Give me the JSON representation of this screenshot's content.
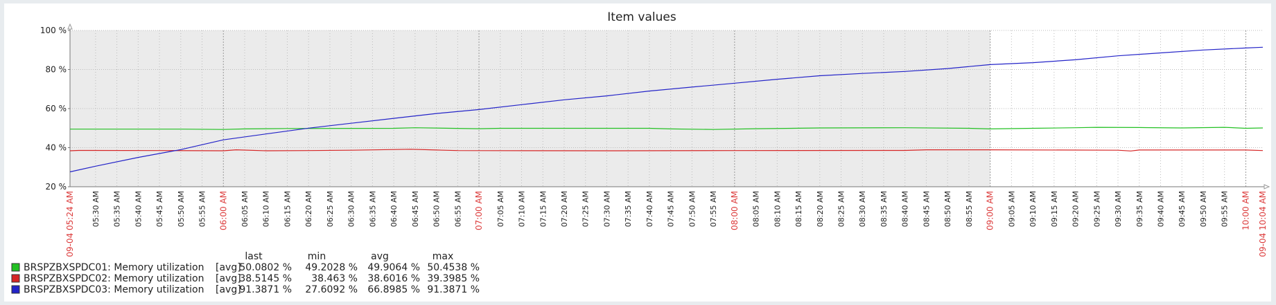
{
  "chart_data": {
    "type": "line",
    "title": "Item values",
    "ylim": [
      20,
      100
    ],
    "y_ticks": [
      "20 %",
      "40 %",
      "60 %",
      "80 %",
      "100 %"
    ],
    "y_tick_values": [
      20,
      40,
      60,
      80,
      100
    ],
    "x_start_label": "09-04 05:24 AM",
    "x_end_label": "09-04 10:04 AM",
    "x_ticks": [
      "05:30 AM",
      "05:35 AM",
      "05:40 AM",
      "05:45 AM",
      "05:50 AM",
      "05:55 AM",
      "06:00 AM",
      "06:05 AM",
      "06:10 AM",
      "06:15 AM",
      "06:20 AM",
      "06:25 AM",
      "06:30 AM",
      "06:35 AM",
      "06:40 AM",
      "06:45 AM",
      "06:50 AM",
      "06:55 AM",
      "07:00 AM",
      "07:05 AM",
      "07:10 AM",
      "07:15 AM",
      "07:20 AM",
      "07:25 AM",
      "07:30 AM",
      "07:35 AM",
      "07:40 AM",
      "07:45 AM",
      "07:50 AM",
      "07:55 AM",
      "08:00 AM",
      "08:05 AM",
      "08:10 AM",
      "08:15 AM",
      "08:20 AM",
      "08:25 AM",
      "08:30 AM",
      "08:35 AM",
      "08:40 AM",
      "08:45 AM",
      "08:50 AM",
      "08:55 AM",
      "09:00 AM",
      "09:05 AM",
      "09:10 AM",
      "09:15 AM",
      "09:20 AM",
      "09:25 AM",
      "09:30 AM",
      "09:35 AM",
      "09:40 AM",
      "09:45 AM",
      "09:50 AM",
      "09:55 AM",
      "10:00 AM"
    ],
    "major_ticks": [
      "06:00 AM",
      "07:00 AM",
      "08:00 AM",
      "09:00 AM",
      "10:00 AM"
    ],
    "shaded_until": "09:00 AM",
    "colors": {
      "grid": "#bbbbbb",
      "shade": "#ebebeb",
      "major_tick_text": "#dc3b3b"
    },
    "series": [
      {
        "name": "BRSPZBXSPDC01: Memory utilization",
        "color": "#22c022",
        "points": [
          [
            "05:24 AM",
            49.5
          ],
          [
            "05:50 AM",
            49.5
          ],
          [
            "06:00 AM",
            49.3
          ],
          [
            "06:05 AM",
            49.6
          ],
          [
            "06:15 AM",
            49.8
          ],
          [
            "06:40 AM",
            49.9
          ],
          [
            "06:45 AM",
            50.2
          ],
          [
            "07:00 AM",
            49.7
          ],
          [
            "07:05 AM",
            49.9
          ],
          [
            "07:40 AM",
            49.9
          ],
          [
            "07:45 AM",
            49.6
          ],
          [
            "07:55 AM",
            49.3
          ],
          [
            "08:05 AM",
            49.7
          ],
          [
            "08:20 AM",
            50.1
          ],
          [
            "08:40 AM",
            50.2
          ],
          [
            "08:55 AM",
            49.9
          ],
          [
            "09:00 AM",
            49.6
          ],
          [
            "09:10 AM",
            49.9
          ],
          [
            "09:20 AM",
            50.2
          ],
          [
            "09:25 AM",
            50.4
          ],
          [
            "09:35 AM",
            50.3
          ],
          [
            "09:45 AM",
            50.1
          ],
          [
            "09:55 AM",
            50.4
          ],
          [
            "10:00 AM",
            49.9
          ],
          [
            "10:04 AM",
            50.08
          ]
        ]
      },
      {
        "name": "BRSPZBXSPDC02: Memory utilization",
        "color": "#d62424",
        "points": [
          [
            "05:24 AM",
            38.4
          ],
          [
            "05:26 AM",
            38.6
          ],
          [
            "05:45 AM",
            38.5
          ],
          [
            "06:00 AM",
            38.4
          ],
          [
            "06:03 AM",
            38.9
          ],
          [
            "06:10 AM",
            38.4
          ],
          [
            "06:20 AM",
            38.5
          ],
          [
            "06:30 AM",
            38.7
          ],
          [
            "06:44 AM",
            39.2
          ],
          [
            "06:50 AM",
            38.8
          ],
          [
            "06:55 AM",
            38.5
          ],
          [
            "07:30 AM",
            38.4
          ],
          [
            "08:00 AM",
            38.5
          ],
          [
            "08:40 AM",
            38.6
          ],
          [
            "08:45 AM",
            38.9
          ],
          [
            "09:00 AM",
            38.9
          ],
          [
            "09:30 AM",
            38.7
          ],
          [
            "09:33 AM",
            38.3
          ],
          [
            "09:35 AM",
            38.8
          ],
          [
            "10:00 AM",
            38.8
          ],
          [
            "10:04 AM",
            38.51
          ]
        ]
      },
      {
        "name": "BRSPZBXSPDC03: Memory utilization",
        "color": "#2323c8",
        "points": [
          [
            "05:24 AM",
            27.6
          ],
          [
            "05:30 AM",
            30.5
          ],
          [
            "05:40 AM",
            35.0
          ],
          [
            "05:50 AM",
            39.0
          ],
          [
            "06:00 AM",
            44.0
          ],
          [
            "06:10 AM",
            47.0
          ],
          [
            "06:20 AM",
            50.0
          ],
          [
            "06:30 AM",
            52.5
          ],
          [
            "06:40 AM",
            55.0
          ],
          [
            "06:50 AM",
            57.5
          ],
          [
            "07:00 AM",
            59.5
          ],
          [
            "07:10 AM",
            62.0
          ],
          [
            "07:20 AM",
            64.5
          ],
          [
            "07:30 AM",
            66.5
          ],
          [
            "07:40 AM",
            69.0
          ],
          [
            "07:50 AM",
            71.0
          ],
          [
            "08:00 AM",
            73.0
          ],
          [
            "08:10 AM",
            75.0
          ],
          [
            "08:20 AM",
            76.8
          ],
          [
            "08:30 AM",
            78.0
          ],
          [
            "08:40 AM",
            79.0
          ],
          [
            "08:50 AM",
            80.5
          ],
          [
            "09:00 AM",
            82.5
          ],
          [
            "09:10 AM",
            83.5
          ],
          [
            "09:20 AM",
            85.0
          ],
          [
            "09:30 AM",
            87.0
          ],
          [
            "09:40 AM",
            88.5
          ],
          [
            "09:50 AM",
            90.0
          ],
          [
            "10:00 AM",
            91.0
          ],
          [
            "10:04 AM",
            91.39
          ]
        ]
      }
    ],
    "legend": {
      "headers": [
        "last",
        "min",
        "avg",
        "max"
      ],
      "rows": [
        {
          "name": "BRSPZBXSPDC01: Memory utilization",
          "func": "[avg]",
          "last": "50.0802 %",
          "min": "49.2028 %",
          "avg": "49.9064 %",
          "max": "50.4538 %"
        },
        {
          "name": "BRSPZBXSPDC02: Memory utilization",
          "func": "[avg]",
          "last": "38.5145 %",
          "min": "38.463 %",
          "avg": "38.6016 %",
          "max": "39.3985 %"
        },
        {
          "name": "BRSPZBXSPDC03: Memory utilization",
          "func": "[avg]",
          "last": "91.3871 %",
          "min": "27.6092 %",
          "avg": "66.8985 %",
          "max": "91.3871 %"
        }
      ]
    }
  }
}
